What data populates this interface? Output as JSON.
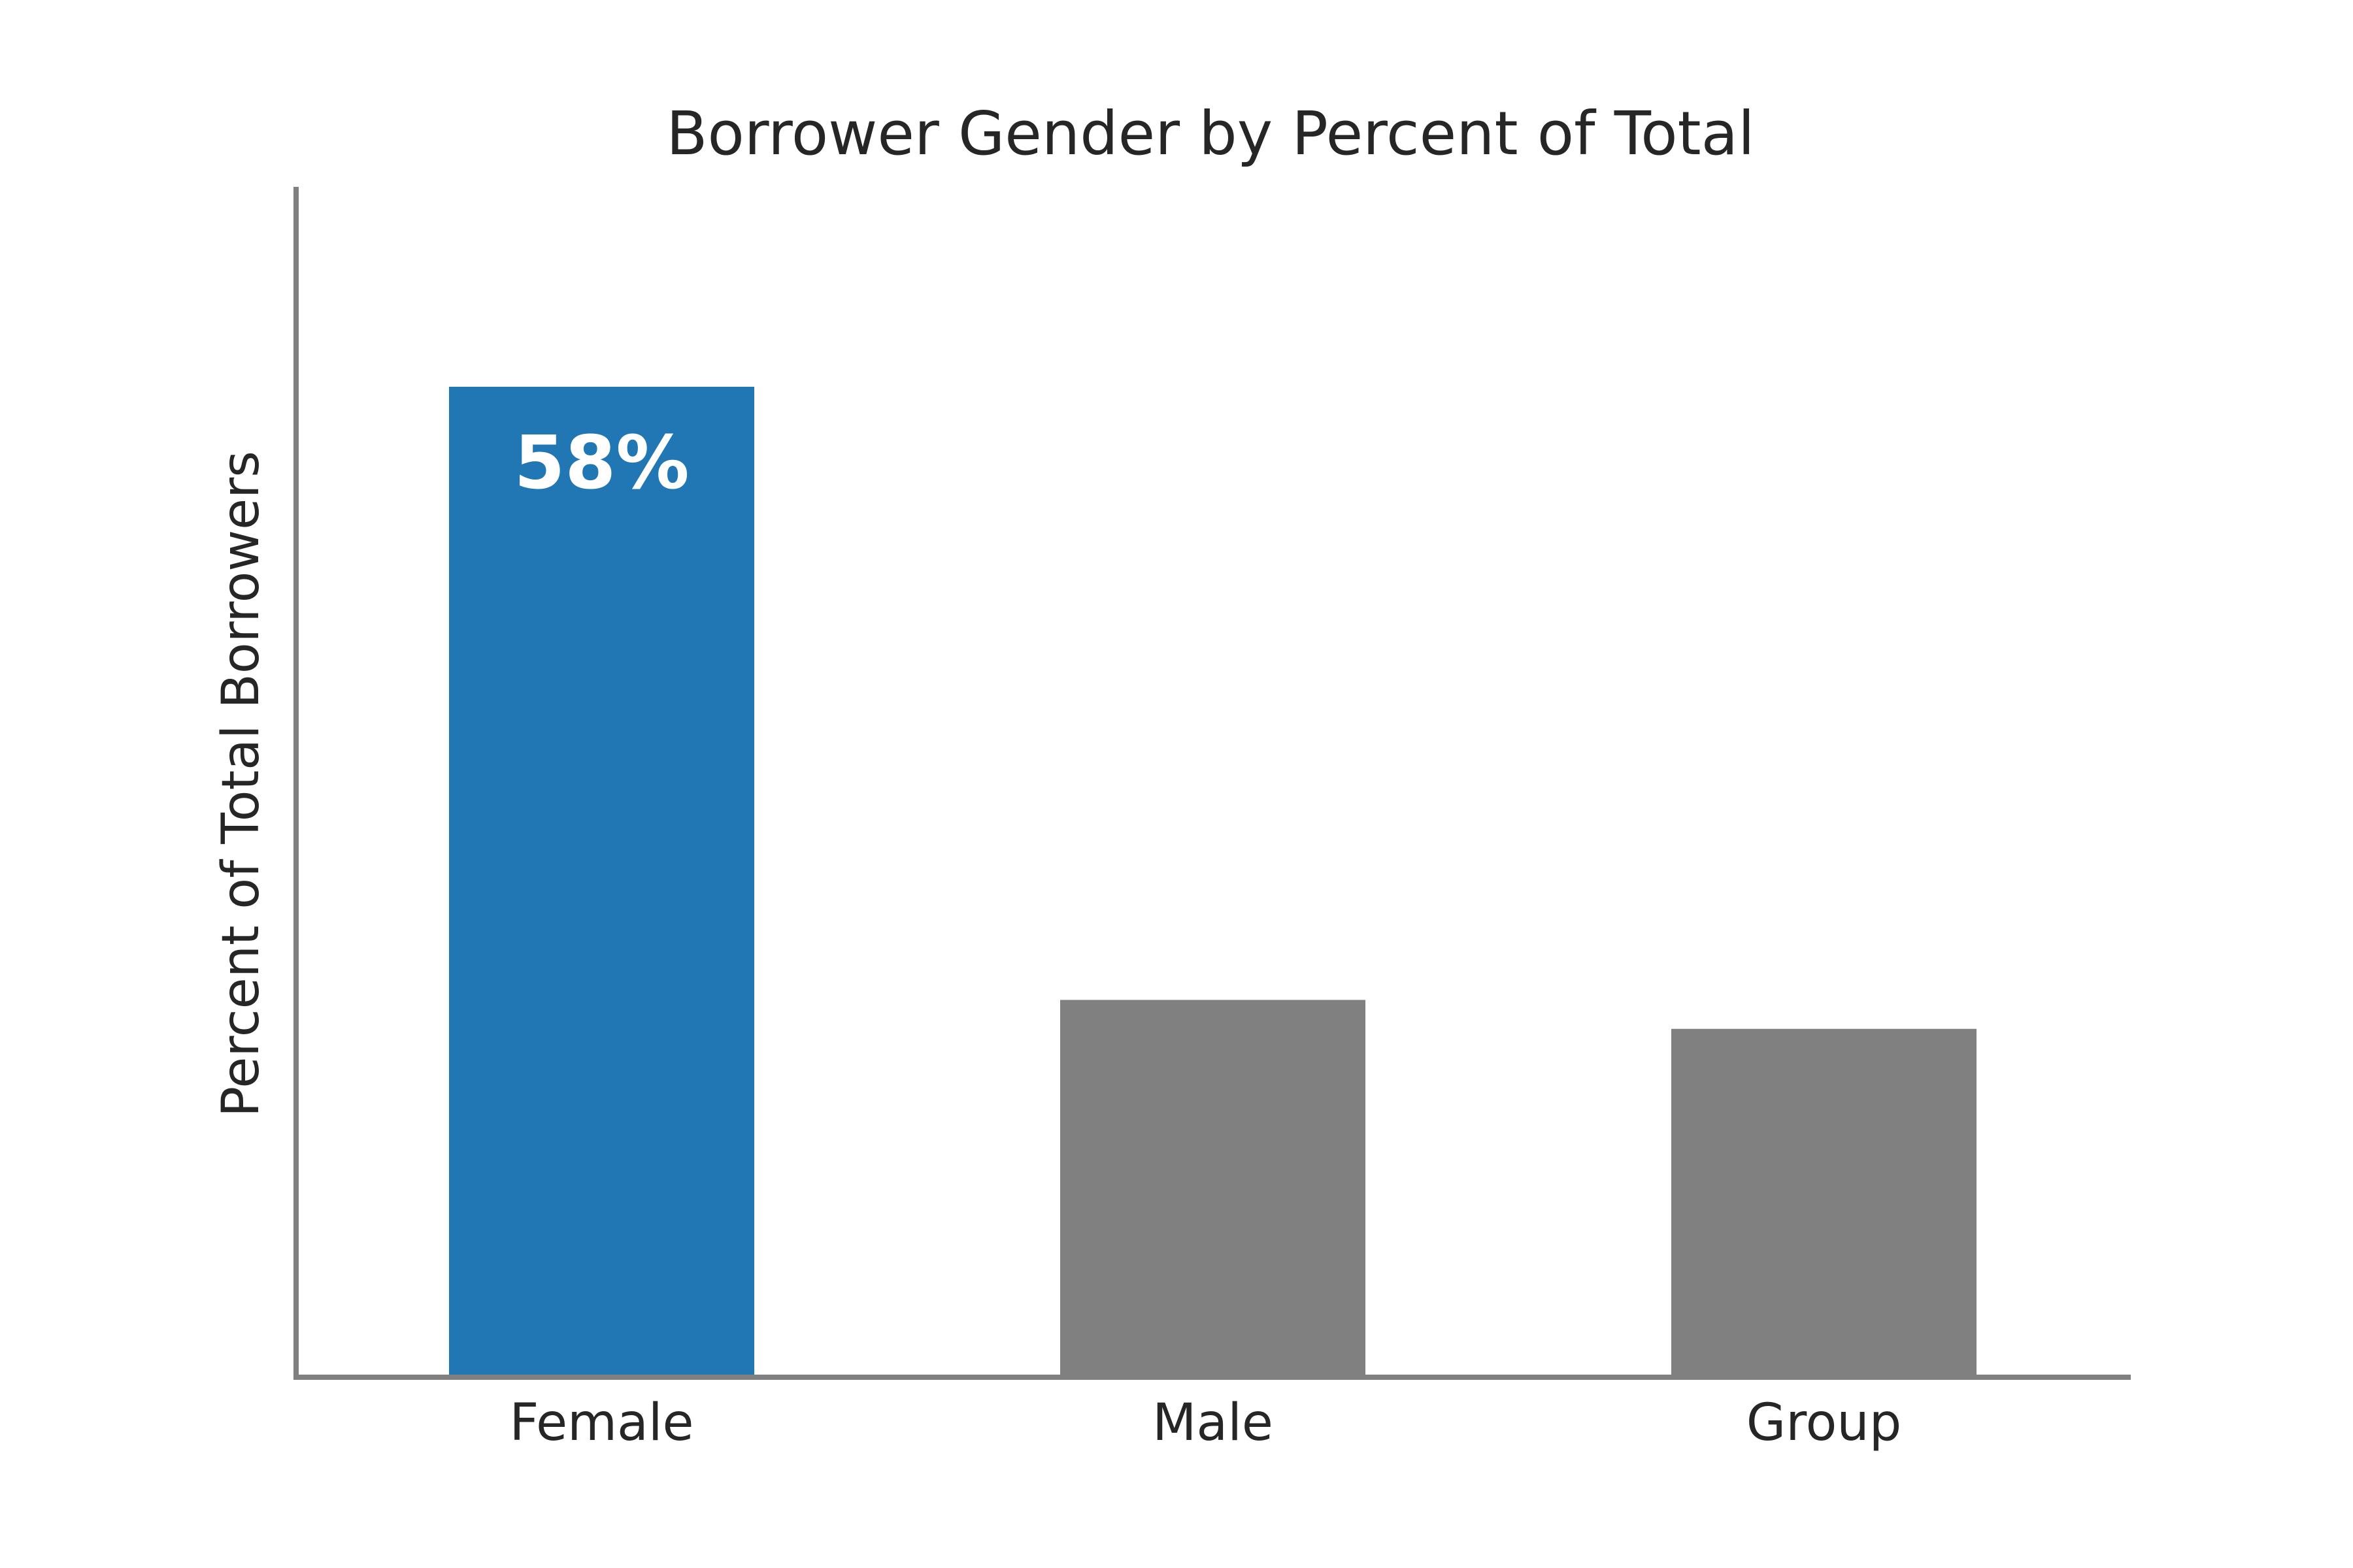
{
  "chart_data": {
    "type": "bar",
    "title": "Borrower Gender by Percent of Total",
    "xlabel": "",
    "ylabel": "Percent of Total Borrowers",
    "categories": [
      "Female",
      "Male",
      "Group"
    ],
    "values": [
      58,
      22,
      20.3
    ],
    "ylim": [
      0,
      70
    ],
    "grid": false,
    "bar_colors": [
      "#2077b4",
      "#808080",
      "#808080"
    ],
    "axis_color": "#808080",
    "data_labels": [
      {
        "category": "Female",
        "text": "58%"
      }
    ]
  }
}
